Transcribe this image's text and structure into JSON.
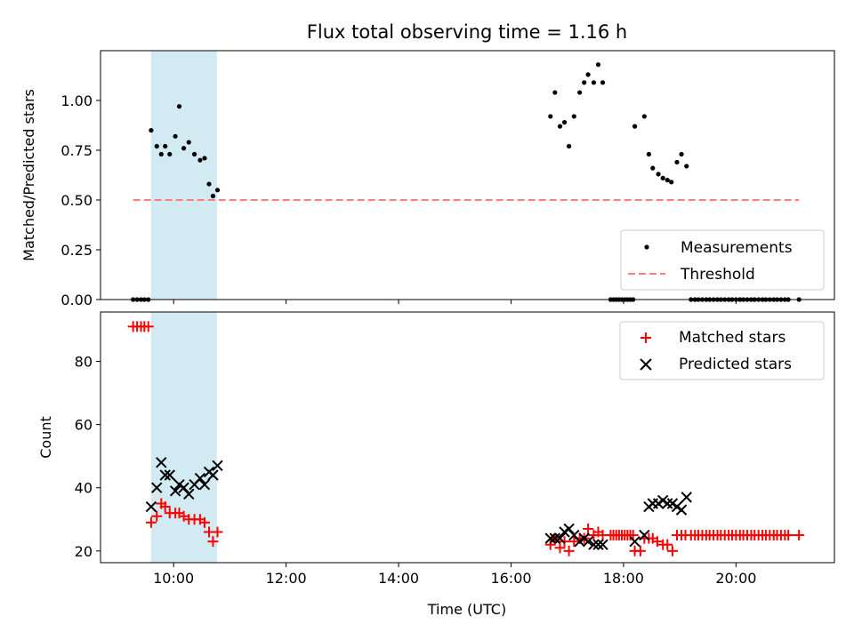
{
  "chart_data": [
    {
      "type": "scatter",
      "title": "Flux total observing time = 1.16 h",
      "xlabel": "",
      "ylabel": "Matched/Predicted stars",
      "xlim": [
        8.7,
        21.75
      ],
      "ylim": [
        0,
        1.25
      ],
      "yticks": [
        0,
        0.25,
        0.5,
        0.75,
        1.0
      ],
      "ytick_labels": [
        "0.00",
        "0.25",
        "0.50",
        "0.75",
        "1.00"
      ],
      "xticks": [
        10,
        12,
        14,
        16,
        18,
        20
      ],
      "shaded_span": [
        9.6,
        10.77
      ],
      "shade_color": "#add8e6",
      "legend_position": "lower right",
      "series": [
        {
          "name": "Measurements",
          "kind": "scatter",
          "color": "#000000",
          "points": [
            [
              9.28,
              0
            ],
            [
              9.35,
              0
            ],
            [
              9.42,
              0
            ],
            [
              9.48,
              0
            ],
            [
              9.55,
              0
            ],
            [
              9.6,
              0.85
            ],
            [
              9.7,
              0.77
            ],
            [
              9.78,
              0.73
            ],
            [
              9.85,
              0.77
            ],
            [
              9.93,
              0.73
            ],
            [
              10.03,
              0.82
            ],
            [
              10.1,
              0.97
            ],
            [
              10.18,
              0.76
            ],
            [
              10.27,
              0.79
            ],
            [
              10.37,
              0.73
            ],
            [
              10.47,
              0.7
            ],
            [
              10.55,
              0.71
            ],
            [
              10.63,
              0.58
            ],
            [
              10.7,
              0.52
            ],
            [
              10.78,
              0.55
            ],
            [
              16.7,
              0.92
            ],
            [
              16.78,
              1.04
            ],
            [
              16.87,
              0.87
            ],
            [
              16.95,
              0.89
            ],
            [
              17.03,
              0.77
            ],
            [
              17.12,
              0.92
            ],
            [
              17.22,
              1.04
            ],
            [
              17.3,
              1.09
            ],
            [
              17.37,
              1.13
            ],
            [
              17.47,
              1.09
            ],
            [
              17.55,
              1.18
            ],
            [
              17.63,
              1.09
            ],
            [
              17.77,
              0
            ],
            [
              17.82,
              0
            ],
            [
              17.87,
              0
            ],
            [
              17.92,
              0
            ],
            [
              17.97,
              0
            ],
            [
              18.02,
              0
            ],
            [
              18.07,
              0
            ],
            [
              18.12,
              0
            ],
            [
              18.17,
              0
            ],
            [
              18.2,
              0.87
            ],
            [
              18.37,
              0.92
            ],
            [
              18.45,
              0.73
            ],
            [
              18.52,
              0.66
            ],
            [
              18.62,
              0.63
            ],
            [
              18.7,
              0.61
            ],
            [
              18.78,
              0.6
            ],
            [
              18.85,
              0.59
            ],
            [
              18.95,
              0.69
            ],
            [
              19.03,
              0.73
            ],
            [
              19.12,
              0.67
            ],
            [
              19.2,
              0
            ],
            [
              19.27,
              0
            ],
            [
              19.33,
              0
            ],
            [
              19.4,
              0
            ],
            [
              19.47,
              0
            ],
            [
              19.53,
              0
            ],
            [
              19.6,
              0
            ],
            [
              19.67,
              0
            ],
            [
              19.73,
              0
            ],
            [
              19.8,
              0
            ],
            [
              19.87,
              0
            ],
            [
              19.93,
              0
            ],
            [
              20.0,
              0
            ],
            [
              20.07,
              0
            ],
            [
              20.13,
              0
            ],
            [
              20.2,
              0
            ],
            [
              20.27,
              0
            ],
            [
              20.33,
              0
            ],
            [
              20.4,
              0
            ],
            [
              20.47,
              0
            ],
            [
              20.53,
              0
            ],
            [
              20.6,
              0
            ],
            [
              20.67,
              0
            ],
            [
              20.73,
              0
            ],
            [
              20.8,
              0
            ],
            [
              20.87,
              0
            ],
            [
              20.93,
              0
            ],
            [
              21.12,
              0
            ]
          ]
        },
        {
          "name": "Threshold",
          "kind": "dashed-line",
          "color": "#ff7f7f",
          "x": [
            9.28,
            21.12
          ],
          "y": [
            0.5,
            0.5
          ]
        }
      ]
    },
    {
      "type": "scatter",
      "title": "",
      "xlabel": "Time (UTC)",
      "ylabel": "Count",
      "xlim": [
        8.7,
        21.75
      ],
      "ylim": [
        16.3,
        95.6
      ],
      "yticks": [
        20,
        40,
        60,
        80
      ],
      "ytick_labels": [
        "20",
        "40",
        "60",
        "80"
      ],
      "xticks": [
        10,
        12,
        14,
        16,
        18,
        20
      ],
      "xtick_labels": [
        "10:00",
        "12:00",
        "14:00",
        "16:00",
        "18:00",
        "20:00"
      ],
      "shaded_span": [
        9.6,
        10.77
      ],
      "shade_color": "#add8e6",
      "legend_position": "upper right",
      "series": [
        {
          "name": "Matched stars",
          "kind": "plus",
          "color": "#ff0000",
          "points": [
            [
              9.28,
              91
            ],
            [
              9.35,
              91
            ],
            [
              9.42,
              91
            ],
            [
              9.48,
              91
            ],
            [
              9.55,
              91
            ],
            [
              9.6,
              29
            ],
            [
              9.7,
              31
            ],
            [
              9.78,
              35
            ],
            [
              9.85,
              34
            ],
            [
              9.93,
              32
            ],
            [
              10.03,
              32
            ],
            [
              10.1,
              32
            ],
            [
              10.18,
              31
            ],
            [
              10.27,
              30
            ],
            [
              10.37,
              30
            ],
            [
              10.47,
              30
            ],
            [
              10.55,
              29
            ],
            [
              10.63,
              26
            ],
            [
              10.7,
              23
            ],
            [
              10.78,
              26
            ],
            [
              16.7,
              22
            ],
            [
              16.78,
              24
            ],
            [
              16.87,
              21
            ],
            [
              16.95,
              23
            ],
            [
              17.03,
              20
            ],
            [
              17.12,
              23
            ],
            [
              17.22,
              24
            ],
            [
              17.3,
              24
            ],
            [
              17.37,
              27
            ],
            [
              17.47,
              25
            ],
            [
              17.55,
              26
            ],
            [
              17.63,
              25
            ],
            [
              17.77,
              25
            ],
            [
              17.82,
              25
            ],
            [
              17.87,
              25
            ],
            [
              17.92,
              25
            ],
            [
              17.97,
              25
            ],
            [
              18.02,
              25
            ],
            [
              18.07,
              25
            ],
            [
              18.12,
              25
            ],
            [
              18.17,
              25
            ],
            [
              18.2,
              20
            ],
            [
              18.3,
              20
            ],
            [
              18.37,
              24
            ],
            [
              18.45,
              24
            ],
            [
              18.52,
              24
            ],
            [
              18.6,
              23
            ],
            [
              18.7,
              22
            ],
            [
              18.78,
              22
            ],
            [
              18.87,
              20
            ],
            [
              18.95,
              25
            ],
            [
              19.03,
              25
            ],
            [
              19.1,
              25
            ],
            [
              19.2,
              25
            ],
            [
              19.27,
              25
            ],
            [
              19.33,
              25
            ],
            [
              19.4,
              25
            ],
            [
              19.47,
              25
            ],
            [
              19.53,
              25
            ],
            [
              19.6,
              25
            ],
            [
              19.67,
              25
            ],
            [
              19.73,
              25
            ],
            [
              19.8,
              25
            ],
            [
              19.87,
              25
            ],
            [
              19.93,
              25
            ],
            [
              20.0,
              25
            ],
            [
              20.07,
              25
            ],
            [
              20.13,
              25
            ],
            [
              20.2,
              25
            ],
            [
              20.27,
              25
            ],
            [
              20.33,
              25
            ],
            [
              20.4,
              25
            ],
            [
              20.47,
              25
            ],
            [
              20.53,
              25
            ],
            [
              20.6,
              25
            ],
            [
              20.67,
              25
            ],
            [
              20.73,
              25
            ],
            [
              20.8,
              25
            ],
            [
              20.87,
              25
            ],
            [
              20.93,
              25
            ],
            [
              21.12,
              25
            ]
          ]
        },
        {
          "name": "Predicted stars",
          "kind": "x",
          "color": "#000000",
          "points": [
            [
              9.6,
              34
            ],
            [
              9.7,
              40
            ],
            [
              9.78,
              48
            ],
            [
              9.85,
              44
            ],
            [
              9.93,
              44
            ],
            [
              10.03,
              39
            ],
            [
              10.1,
              41
            ],
            [
              10.18,
              40
            ],
            [
              10.27,
              38
            ],
            [
              10.37,
              41
            ],
            [
              10.47,
              43
            ],
            [
              10.55,
              41
            ],
            [
              10.63,
              45
            ],
            [
              10.7,
              44
            ],
            [
              10.78,
              47
            ],
            [
              16.7,
              24
            ],
            [
              16.78,
              24
            ],
            [
              16.87,
              24
            ],
            [
              16.95,
              26
            ],
            [
              17.03,
              27
            ],
            [
              17.12,
              25
            ],
            [
              17.22,
              23
            ],
            [
              17.3,
              24
            ],
            [
              17.37,
              23
            ],
            [
              17.47,
              22
            ],
            [
              17.55,
              22
            ],
            [
              17.63,
              22
            ],
            [
              18.2,
              23
            ],
            [
              18.37,
              25
            ],
            [
              18.45,
              34
            ],
            [
              18.52,
              35
            ],
            [
              18.62,
              35
            ],
            [
              18.7,
              36
            ],
            [
              18.78,
              35
            ],
            [
              18.87,
              35
            ],
            [
              18.95,
              34
            ],
            [
              19.03,
              33
            ],
            [
              19.12,
              37
            ]
          ]
        }
      ]
    }
  ]
}
